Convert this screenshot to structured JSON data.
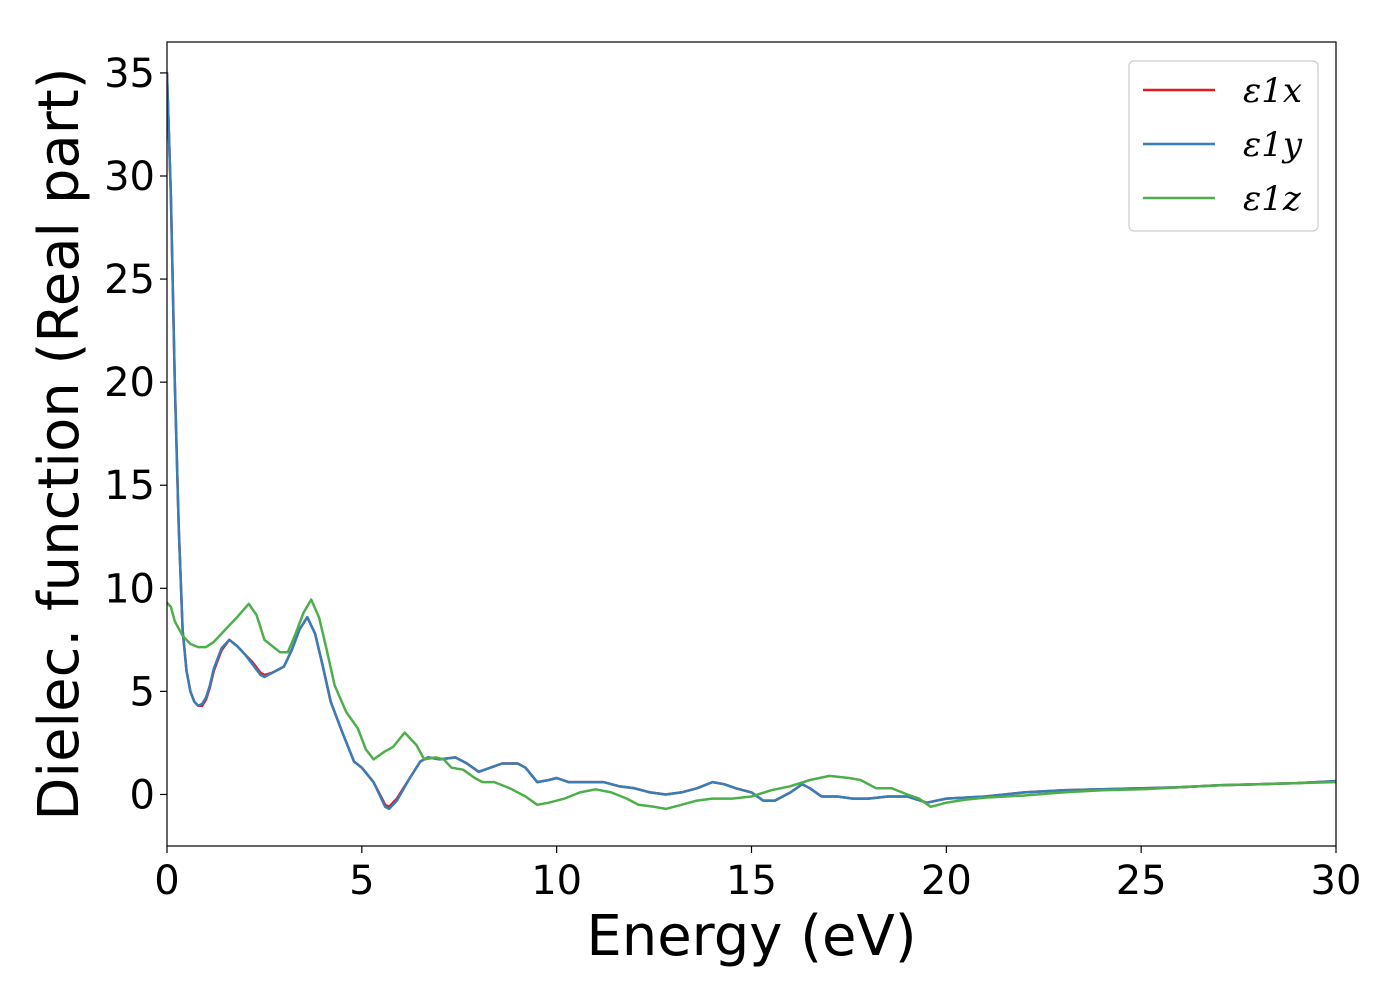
{
  "chart_data": {
    "type": "line",
    "xlabel": "Energy (eV)",
    "ylabel": "Dielec. function (Real part)",
    "xlim": [
      0,
      30
    ],
    "ylim": [
      -2.5,
      36.5
    ],
    "x_ticks": [
      0,
      5,
      10,
      15,
      20,
      25,
      30
    ],
    "y_ticks": [
      0,
      5,
      10,
      15,
      20,
      25,
      30,
      35
    ],
    "grid": false,
    "legend_position": "top-right",
    "series": [
      {
        "name": "ε1x",
        "color": "#e41a1c",
        "points": [
          [
            0,
            35.0
          ],
          [
            0.1,
            29.0
          ],
          [
            0.2,
            20.0
          ],
          [
            0.3,
            13.0
          ],
          [
            0.4,
            8.0
          ],
          [
            0.5,
            6.0
          ],
          [
            0.6,
            5.0
          ],
          [
            0.7,
            4.5
          ],
          [
            0.8,
            4.3
          ],
          [
            0.9,
            4.3
          ],
          [
            1.0,
            4.6
          ],
          [
            1.1,
            5.2
          ],
          [
            1.2,
            6.0
          ],
          [
            1.4,
            7.0
          ],
          [
            1.6,
            7.5
          ],
          [
            1.8,
            7.2
          ],
          [
            2.0,
            6.8
          ],
          [
            2.2,
            6.4
          ],
          [
            2.4,
            5.9
          ],
          [
            2.5,
            5.8
          ],
          [
            2.7,
            5.9
          ],
          [
            3.0,
            6.2
          ],
          [
            3.2,
            7.0
          ],
          [
            3.4,
            8.0
          ],
          [
            3.6,
            8.6
          ],
          [
            3.8,
            7.8
          ],
          [
            4.0,
            6.2
          ],
          [
            4.2,
            4.5
          ],
          [
            4.5,
            3.0
          ],
          [
            4.8,
            1.6
          ],
          [
            5.0,
            1.3
          ],
          [
            5.3,
            0.6
          ],
          [
            5.6,
            -0.5
          ],
          [
            5.7,
            -0.6
          ],
          [
            5.9,
            -0.2
          ],
          [
            6.2,
            0.7
          ],
          [
            6.5,
            1.6
          ],
          [
            6.7,
            1.8
          ],
          [
            7.0,
            1.7
          ],
          [
            7.4,
            1.8
          ],
          [
            7.7,
            1.5
          ],
          [
            8.0,
            1.1
          ],
          [
            8.3,
            1.3
          ],
          [
            8.6,
            1.5
          ],
          [
            9.0,
            1.5
          ],
          [
            9.2,
            1.3
          ],
          [
            9.5,
            0.6
          ],
          [
            9.8,
            0.7
          ],
          [
            10.0,
            0.8
          ],
          [
            10.3,
            0.6
          ],
          [
            10.8,
            0.6
          ],
          [
            11.2,
            0.6
          ],
          [
            11.6,
            0.4
          ],
          [
            12.0,
            0.3
          ],
          [
            12.4,
            0.1
          ],
          [
            12.8,
            0.0
          ],
          [
            13.2,
            0.1
          ],
          [
            13.6,
            0.3
          ],
          [
            14.0,
            0.6
          ],
          [
            14.3,
            0.5
          ],
          [
            14.6,
            0.3
          ],
          [
            15.0,
            0.1
          ],
          [
            15.3,
            -0.3
          ],
          [
            15.6,
            -0.3
          ],
          [
            16.0,
            0.1
          ],
          [
            16.3,
            0.5
          ],
          [
            16.5,
            0.3
          ],
          [
            16.8,
            -0.1
          ],
          [
            17.2,
            -0.1
          ],
          [
            17.6,
            -0.2
          ],
          [
            18.0,
            -0.2
          ],
          [
            18.5,
            -0.1
          ],
          [
            19.0,
            -0.1
          ],
          [
            19.5,
            -0.4
          ],
          [
            20.0,
            -0.2
          ],
          [
            21.0,
            -0.1
          ],
          [
            22.0,
            0.1
          ],
          [
            23.0,
            0.2
          ],
          [
            24.0,
            0.25
          ],
          [
            25.0,
            0.3
          ],
          [
            26.0,
            0.35
          ],
          [
            27.0,
            0.45
          ],
          [
            28.0,
            0.5
          ],
          [
            29.0,
            0.55
          ],
          [
            30.0,
            0.65
          ]
        ]
      },
      {
        "name": "ε1y",
        "color": "#377eb8",
        "points": [
          [
            0,
            35.0
          ],
          [
            0.1,
            29.0
          ],
          [
            0.2,
            20.0
          ],
          [
            0.3,
            13.0
          ],
          [
            0.4,
            8.0
          ],
          [
            0.5,
            6.0
          ],
          [
            0.6,
            5.0
          ],
          [
            0.7,
            4.5
          ],
          [
            0.8,
            4.3
          ],
          [
            0.9,
            4.4
          ],
          [
            1.0,
            4.7
          ],
          [
            1.1,
            5.3
          ],
          [
            1.2,
            6.1
          ],
          [
            1.4,
            7.1
          ],
          [
            1.6,
            7.5
          ],
          [
            1.8,
            7.2
          ],
          [
            2.0,
            6.8
          ],
          [
            2.2,
            6.3
          ],
          [
            2.4,
            5.8
          ],
          [
            2.5,
            5.7
          ],
          [
            2.7,
            5.9
          ],
          [
            3.0,
            6.2
          ],
          [
            3.2,
            7.0
          ],
          [
            3.4,
            8.0
          ],
          [
            3.6,
            8.6
          ],
          [
            3.8,
            7.8
          ],
          [
            4.0,
            6.2
          ],
          [
            4.2,
            4.5
          ],
          [
            4.5,
            3.0
          ],
          [
            4.8,
            1.6
          ],
          [
            5.0,
            1.3
          ],
          [
            5.3,
            0.6
          ],
          [
            5.6,
            -0.6
          ],
          [
            5.7,
            -0.7
          ],
          [
            5.9,
            -0.3
          ],
          [
            6.2,
            0.7
          ],
          [
            6.5,
            1.6
          ],
          [
            6.7,
            1.8
          ],
          [
            7.0,
            1.7
          ],
          [
            7.4,
            1.8
          ],
          [
            7.7,
            1.5
          ],
          [
            8.0,
            1.1
          ],
          [
            8.3,
            1.3
          ],
          [
            8.6,
            1.5
          ],
          [
            9.0,
            1.5
          ],
          [
            9.2,
            1.3
          ],
          [
            9.5,
            0.6
          ],
          [
            9.8,
            0.7
          ],
          [
            10.0,
            0.8
          ],
          [
            10.3,
            0.6
          ],
          [
            10.8,
            0.6
          ],
          [
            11.2,
            0.6
          ],
          [
            11.6,
            0.4
          ],
          [
            12.0,
            0.3
          ],
          [
            12.4,
            0.1
          ],
          [
            12.8,
            0.0
          ],
          [
            13.2,
            0.1
          ],
          [
            13.6,
            0.3
          ],
          [
            14.0,
            0.6
          ],
          [
            14.3,
            0.5
          ],
          [
            14.6,
            0.3
          ],
          [
            15.0,
            0.1
          ],
          [
            15.3,
            -0.3
          ],
          [
            15.6,
            -0.3
          ],
          [
            16.0,
            0.1
          ],
          [
            16.3,
            0.5
          ],
          [
            16.5,
            0.3
          ],
          [
            16.8,
            -0.1
          ],
          [
            17.2,
            -0.1
          ],
          [
            17.6,
            -0.2
          ],
          [
            18.0,
            -0.2
          ],
          [
            18.5,
            -0.1
          ],
          [
            19.0,
            -0.1
          ],
          [
            19.5,
            -0.4
          ],
          [
            20.0,
            -0.2
          ],
          [
            21.0,
            -0.1
          ],
          [
            22.0,
            0.1
          ],
          [
            23.0,
            0.2
          ],
          [
            24.0,
            0.25
          ],
          [
            25.0,
            0.3
          ],
          [
            26.0,
            0.35
          ],
          [
            27.0,
            0.45
          ],
          [
            28.0,
            0.5
          ],
          [
            29.0,
            0.55
          ],
          [
            30.0,
            0.65
          ]
        ]
      },
      {
        "name": "ε1z",
        "color": "#4daf4a",
        "points": [
          [
            0,
            9.3
          ],
          [
            0.1,
            9.1
          ],
          [
            0.2,
            8.4
          ],
          [
            0.4,
            7.7
          ],
          [
            0.6,
            7.3
          ],
          [
            0.8,
            7.15
          ],
          [
            1.0,
            7.15
          ],
          [
            1.2,
            7.4
          ],
          [
            1.5,
            8.0
          ],
          [
            1.8,
            8.6
          ],
          [
            2.1,
            9.25
          ],
          [
            2.3,
            8.7
          ],
          [
            2.5,
            7.5
          ],
          [
            2.7,
            7.2
          ],
          [
            2.9,
            6.9
          ],
          [
            3.1,
            6.9
          ],
          [
            3.3,
            7.8
          ],
          [
            3.5,
            8.8
          ],
          [
            3.7,
            9.45
          ],
          [
            3.9,
            8.6
          ],
          [
            4.1,
            7.0
          ],
          [
            4.3,
            5.3
          ],
          [
            4.6,
            4.0
          ],
          [
            4.9,
            3.2
          ],
          [
            5.1,
            2.2
          ],
          [
            5.3,
            1.7
          ],
          [
            5.6,
            2.1
          ],
          [
            5.8,
            2.3
          ],
          [
            6.1,
            3.0
          ],
          [
            6.4,
            2.4
          ],
          [
            6.6,
            1.7
          ],
          [
            6.9,
            1.8
          ],
          [
            7.1,
            1.7
          ],
          [
            7.3,
            1.3
          ],
          [
            7.6,
            1.2
          ],
          [
            7.9,
            0.8
          ],
          [
            8.1,
            0.6
          ],
          [
            8.4,
            0.6
          ],
          [
            8.8,
            0.3
          ],
          [
            9.2,
            -0.1
          ],
          [
            9.5,
            -0.5
          ],
          [
            9.8,
            -0.4
          ],
          [
            10.2,
            -0.2
          ],
          [
            10.6,
            0.1
          ],
          [
            11.0,
            0.25
          ],
          [
            11.4,
            0.1
          ],
          [
            11.8,
            -0.2
          ],
          [
            12.1,
            -0.5
          ],
          [
            12.5,
            -0.6
          ],
          [
            12.8,
            -0.7
          ],
          [
            13.2,
            -0.5
          ],
          [
            13.6,
            -0.3
          ],
          [
            14.0,
            -0.2
          ],
          [
            14.5,
            -0.2
          ],
          [
            15.0,
            -0.1
          ],
          [
            15.5,
            0.2
          ],
          [
            16.0,
            0.4
          ],
          [
            16.5,
            0.7
          ],
          [
            17.0,
            0.9
          ],
          [
            17.5,
            0.8
          ],
          [
            17.8,
            0.7
          ],
          [
            18.2,
            0.3
          ],
          [
            18.6,
            0.3
          ],
          [
            19.0,
            0.0
          ],
          [
            19.3,
            -0.2
          ],
          [
            19.6,
            -0.6
          ],
          [
            20.0,
            -0.4
          ],
          [
            20.5,
            -0.25
          ],
          [
            21.0,
            -0.15
          ],
          [
            22.0,
            -0.05
          ],
          [
            23.0,
            0.1
          ],
          [
            24.0,
            0.2
          ],
          [
            25.0,
            0.25
          ],
          [
            26.0,
            0.35
          ],
          [
            27.0,
            0.45
          ],
          [
            28.0,
            0.5
          ],
          [
            29.0,
            0.55
          ],
          [
            30.0,
            0.6
          ]
        ]
      }
    ]
  }
}
